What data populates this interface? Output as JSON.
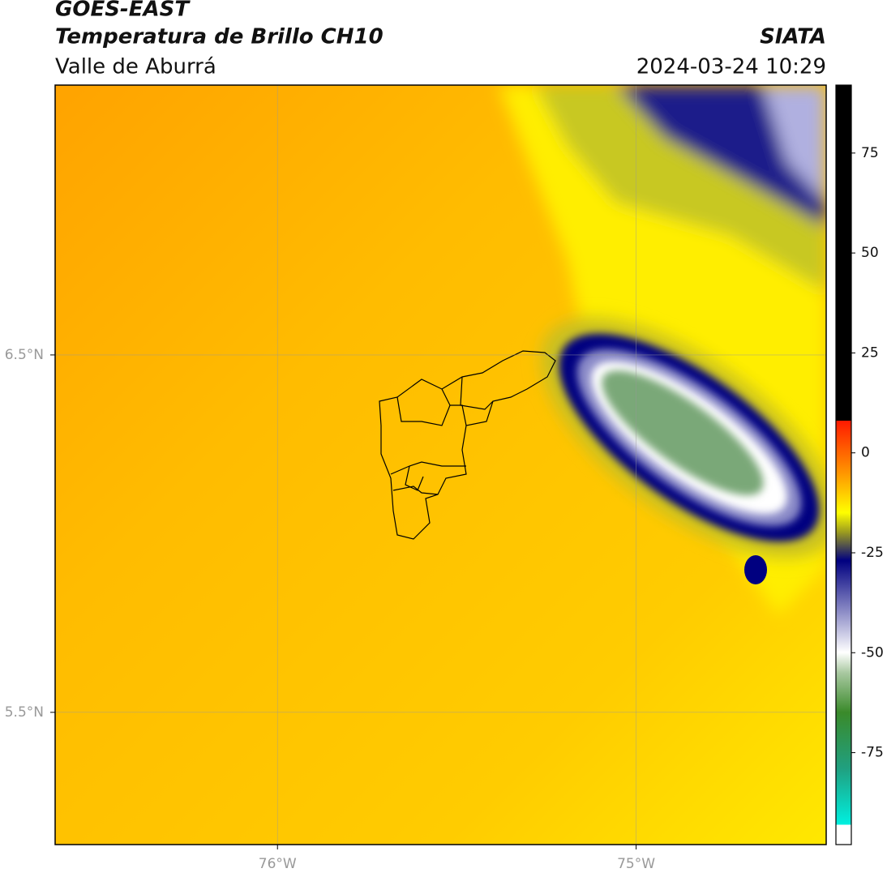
{
  "header": {
    "title": "GOES-EAST",
    "subtitle": "Temperatura de Brillo CH10",
    "region": "Valle de Aburrá",
    "source": "SIATA",
    "datetime": "2024-03-24 10:29"
  },
  "map": {
    "xlim": [
      -76.62,
      -74.47
    ],
    "ylim": [
      5.13,
      7.255
    ],
    "xticks": [
      {
        "value": -76,
        "label": "76°W"
      },
      {
        "value": -75,
        "label": "75°W"
      }
    ],
    "yticks": [
      {
        "value": 5.5,
        "label": "5.5°N"
      },
      {
        "value": 6.5,
        "label": "6.5°N"
      }
    ],
    "grid": true
  },
  "colorbar": {
    "lim": [
      -98,
      92
    ],
    "ticks": [
      75,
      50,
      25,
      0,
      -25,
      -50,
      -75
    ]
  }
}
